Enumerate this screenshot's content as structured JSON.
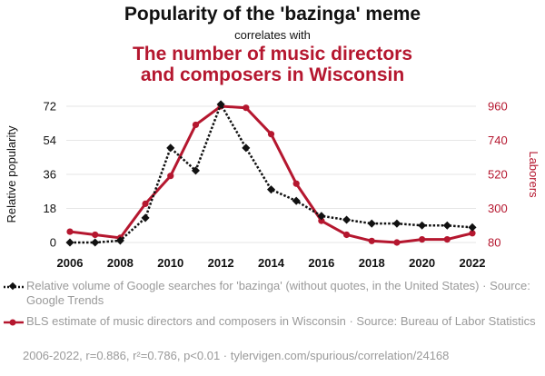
{
  "header": {
    "title": "Popularity of the 'bazinga' meme",
    "connector": "correlates with",
    "secondary_line1": "The number of music directors",
    "secondary_line2": "and composers in Wisconsin"
  },
  "legend": {
    "series1_text": "Relative volume of Google searches for 'bazinga' (without quotes, in the United States) · Source: Google Trends",
    "series2_text": "BLS estimate of music directors and composers in Wisconsin · Source: Bureau of Labor Statistics"
  },
  "footer": {
    "text": "2006-2022, r=0.886, r²=0.786, p<0.01 · tylervigen.com/spurious/correlation/24168"
  },
  "colors": {
    "series1": "#111111",
    "series2": "#b5172f",
    "gridline": "#e6e6e6",
    "legend_text": "#9a9a9a"
  },
  "chart_data": {
    "type": "line",
    "x": [
      2006,
      2007,
      2008,
      2009,
      2010,
      2011,
      2012,
      2013,
      2014,
      2015,
      2016,
      2017,
      2018,
      2019,
      2020,
      2021,
      2022
    ],
    "x_ticks": [
      2006,
      2008,
      2010,
      2012,
      2014,
      2016,
      2018,
      2020,
      2022
    ],
    "left_axis": {
      "label": "Relative popularity",
      "ticks": [
        0,
        18,
        36,
        54,
        72
      ],
      "range": [
        0,
        72
      ]
    },
    "right_axis": {
      "label": "Laborers",
      "ticks": [
        80,
        300,
        520,
        740,
        960
      ],
      "range": [
        80,
        960
      ]
    },
    "grid": true,
    "series": [
      {
        "name": "Relative volume of Google searches for 'bazinga'",
        "axis": "left",
        "style": "dotted",
        "marker": "diamond",
        "values": [
          0,
          0,
          1,
          13,
          50,
          38,
          73,
          50,
          28,
          22,
          14,
          12,
          10,
          10,
          9,
          9,
          8
        ]
      },
      {
        "name": "BLS estimate of music directors and composers in Wisconsin",
        "axis": "right",
        "style": "solid",
        "marker": "circle",
        "values": [
          150,
          130,
          110,
          330,
          510,
          840,
          960,
          950,
          780,
          460,
          220,
          130,
          90,
          80,
          100,
          100,
          140
        ]
      }
    ]
  }
}
